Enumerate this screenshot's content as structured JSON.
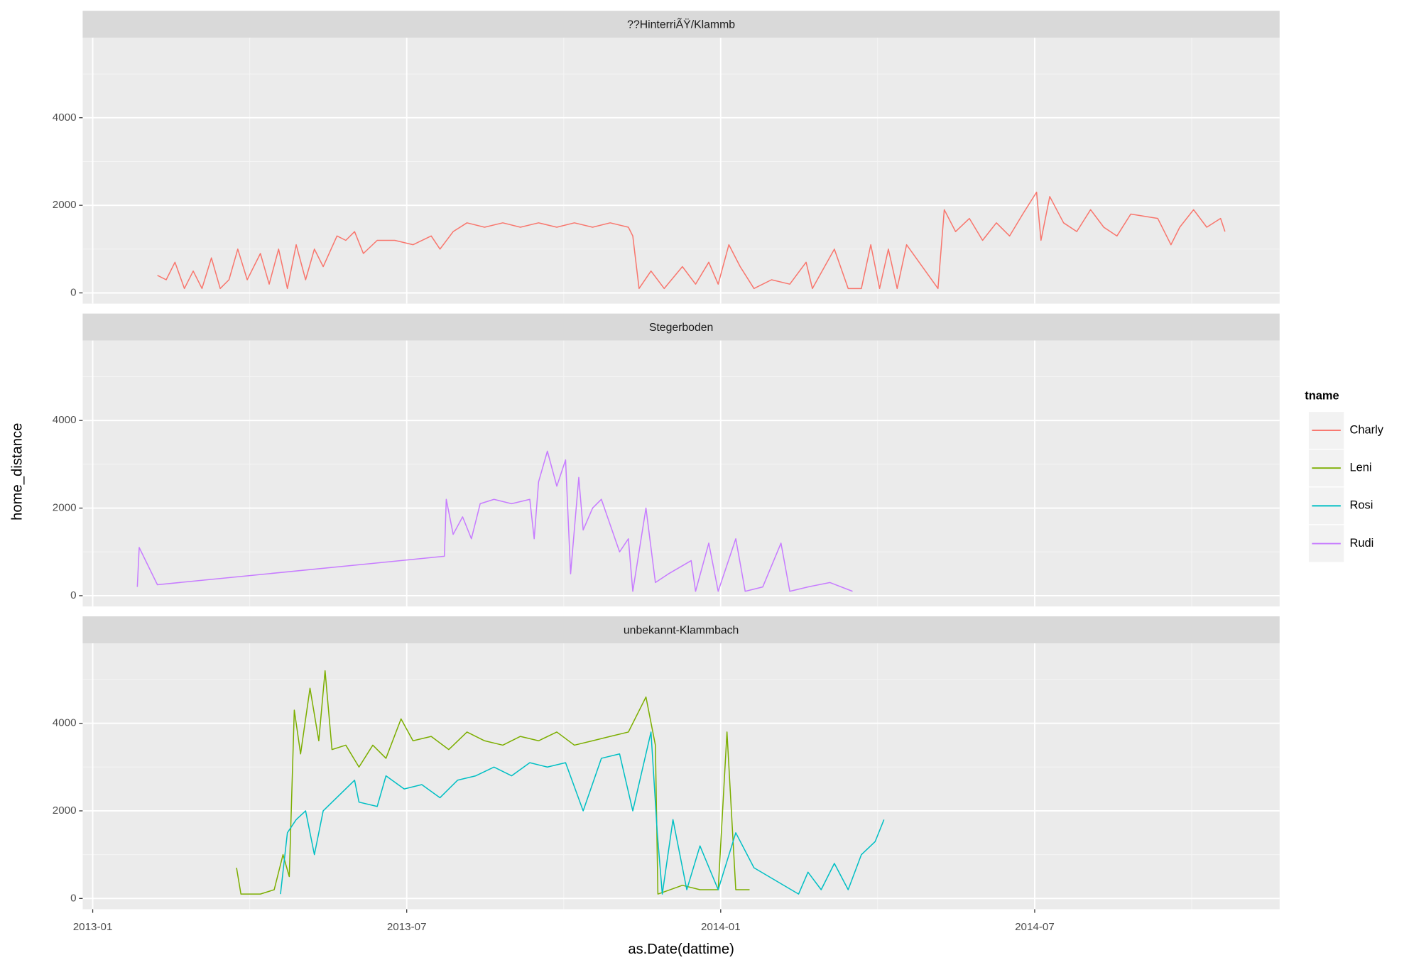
{
  "x_label": "as.Date(dattime)",
  "y_label": "home_distance",
  "legend_title": "tname",
  "xlim": [
    2012.984,
    2014.89
  ],
  "xticks": [
    {
      "value": 2013,
      "label": "2013-01"
    },
    {
      "value": 2013.5,
      "label": "2013-07"
    },
    {
      "value": 2014,
      "label": "2014-01"
    },
    {
      "value": 2014.5,
      "label": "2014-07"
    }
  ],
  "ylim": [
    -246,
    5826
  ],
  "yticks": [
    0,
    2000,
    4000
  ],
  "chart_data": [
    {
      "type": "line",
      "title": "??HinterriÃŸ/Klammb",
      "series": [
        {
          "name": "Charly",
          "color": "#f8766d",
          "x": [
            2013.103,
            2013.117,
            2013.131,
            2013.146,
            2013.16,
            2013.174,
            2013.189,
            2013.203,
            2013.217,
            2013.231,
            2013.246,
            2013.267,
            2013.281,
            2013.296,
            2013.31,
            2013.324,
            2013.339,
            2013.353,
            2013.367,
            2013.389,
            2013.403,
            2013.417,
            2013.431,
            2013.453,
            2013.481,
            2013.51,
            2013.539,
            2013.553,
            2013.574,
            2013.596,
            2013.624,
            2013.653,
            2013.681,
            2013.71,
            2013.739,
            2013.767,
            2013.796,
            2013.824,
            2013.853,
            2013.86,
            2013.87,
            2013.889,
            2013.91,
            2013.939,
            2013.96,
            2013.981,
            2013.996,
            2014.013,
            2014.031,
            2014.053,
            2014.081,
            2014.11,
            2014.136,
            2014.146,
            2014.181,
            2014.203,
            2014.224,
            2014.239,
            2014.253,
            2014.267,
            2014.281,
            2014.296,
            2014.346,
            2014.356,
            2014.374,
            2014.396,
            2014.417,
            2014.439,
            2014.46,
            2014.481,
            2014.503,
            2014.51,
            2014.524,
            2014.546,
            2014.567,
            2014.589,
            2014.61,
            2014.631,
            2014.653,
            2014.696,
            2014.717,
            2014.731,
            2014.753,
            2014.774,
            2014.796,
            2014.803
          ],
          "values": [
            400,
            300,
            700,
            100,
            500,
            100,
            800,
            100,
            300,
            1000,
            300,
            900,
            200,
            1000,
            100,
            1100,
            300,
            1000,
            600,
            1300,
            1200,
            1400,
            900,
            1200,
            1200,
            1100,
            1300,
            1000,
            1400,
            1600,
            1500,
            1600,
            1500,
            1600,
            1500,
            1600,
            1500,
            1600,
            1500,
            1300,
            100,
            500,
            100,
            600,
            200,
            700,
            200,
            1100,
            600,
            100,
            300,
            200,
            700,
            100,
            1000,
            100,
            100,
            1100,
            100,
            1000,
            100,
            1100,
            100,
            1900,
            1400,
            1700,
            1200,
            1600,
            1300,
            1800,
            2300,
            1200,
            2200,
            1600,
            1400,
            1900,
            1500,
            1300,
            1800,
            1700,
            1100,
            1500,
            1900,
            1500,
            1700,
            1400
          ]
        }
      ]
    },
    {
      "type": "line",
      "title": "Stegerboden",
      "series": [
        {
          "name": "Rudi",
          "color": "#c77cff",
          "x": [
            2013.071,
            2013.074,
            2013.103,
            2013.56,
            2013.563,
            2013.574,
            2013.589,
            2013.603,
            2013.617,
            2013.639,
            2013.667,
            2013.696,
            2013.703,
            2013.71,
            2013.724,
            2013.739,
            2013.753,
            2013.761,
            2013.774,
            2013.781,
            2013.796,
            2013.81,
            2013.839,
            2013.853,
            2013.86,
            2013.881,
            2013.896,
            2013.917,
            2013.953,
            2013.96,
            2013.981,
            2013.996,
            2014.024,
            2014.039,
            2014.067,
            2014.096,
            2014.11,
            2014.139,
            2014.174,
            2014.21
          ],
          "values": [
            200,
            1100,
            250,
            900,
            2200,
            1400,
            1800,
            1300,
            2100,
            2200,
            2100,
            2200,
            1300,
            2600,
            3300,
            2500,
            3100,
            500,
            2700,
            1500,
            2000,
            2200,
            1000,
            1300,
            100,
            2000,
            300,
            500,
            800,
            100,
            1200,
            100,
            1300,
            100,
            200,
            1200,
            100,
            200,
            300,
            100
          ]
        }
      ]
    },
    {
      "type": "line",
      "title": "unbekannt-Klammbach",
      "series": [
        {
          "name": "Leni",
          "color": "#7cae00",
          "x": [
            2013.229,
            2013.236,
            2013.267,
            2013.289,
            2013.303,
            2013.313,
            2013.321,
            2013.331,
            2013.346,
            2013.36,
            2013.37,
            2013.381,
            2013.403,
            2013.424,
            2013.446,
            2013.467,
            2013.491,
            2013.51,
            2013.539,
            2013.567,
            2013.596,
            2013.624,
            2013.653,
            2013.681,
            2013.71,
            2013.739,
            2013.767,
            2013.796,
            2013.824,
            2013.853,
            2013.881,
            2013.896,
            2013.9,
            2013.939,
            2013.967,
            2013.996,
            2014.01,
            2014.024,
            2014.046
          ],
          "values": [
            700,
            100,
            100,
            200,
            1000,
            500,
            4300,
            3300,
            4800,
            3600,
            5200,
            3400,
            3500,
            3000,
            3500,
            3200,
            4100,
            3600,
            3700,
            3400,
            3800,
            3600,
            3500,
            3700,
            3600,
            3800,
            3500,
            3600,
            3700,
            3800,
            4600,
            3500,
            100,
            300,
            200,
            200,
            3800,
            200,
            200
          ]
        },
        {
          "name": "Rosi",
          "color": "#00bfc4",
          "x": [
            2013.299,
            2013.31,
            2013.324,
            2013.339,
            2013.353,
            2013.367,
            2013.417,
            2013.424,
            2013.453,
            2013.467,
            2013.496,
            2013.524,
            2013.553,
            2013.581,
            2013.61,
            2013.639,
            2013.667,
            2013.696,
            2013.724,
            2013.753,
            2013.781,
            2013.81,
            2013.839,
            2013.86,
            2013.889,
            2013.899,
            2013.907,
            2013.924,
            2013.946,
            2013.967,
            2013.996,
            2014.024,
            2014.053,
            2014.124,
            2014.139,
            2014.16,
            2014.181,
            2014.203,
            2014.224,
            2014.246,
            2014.26
          ],
          "values": [
            100,
            1500,
            1800,
            2000,
            1000,
            2000,
            2700,
            2200,
            2100,
            2800,
            2500,
            2600,
            2300,
            2700,
            2800,
            3000,
            2800,
            3100,
            3000,
            3100,
            2000,
            3200,
            3300,
            2000,
            3800,
            1500,
            100,
            1800,
            200,
            1200,
            200,
            1500,
            700,
            100,
            600,
            200,
            800,
            200,
            1000,
            1300,
            1800
          ]
        }
      ]
    }
  ]
}
